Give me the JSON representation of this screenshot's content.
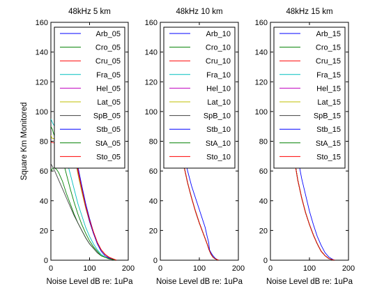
{
  "chart_data": [
    {
      "type": "line",
      "title": "48kHz 5 km",
      "xlabel": "Noise Level dB re: 1uPa",
      "ylabel": "Square Km Monitored",
      "xlim": [
        0,
        200
      ],
      "ylim": [
        0,
        160
      ],
      "xticks": [
        "0",
        "100",
        "200"
      ],
      "yticks": [
        "0",
        "20",
        "40",
        "60",
        "80",
        "100",
        "120",
        "140",
        "160"
      ],
      "grid": false,
      "legend_position": "top-right",
      "series": [
        {
          "name": "Arb_05",
          "color": "#0000ff",
          "x": [
            60,
            70,
            80,
            90,
            100,
            110,
            120,
            130,
            140,
            150,
            160,
            170
          ],
          "y": [
            78,
            63,
            50,
            38,
            28,
            19,
            12,
            7,
            4,
            2,
            1,
            0
          ]
        },
        {
          "name": "Cro_05",
          "color": "#008000",
          "x": [
            0,
            5,
            10,
            15,
            20,
            30,
            40,
            50,
            60,
            70,
            80,
            90,
            100,
            110,
            120,
            130,
            140,
            150,
            160,
            170
          ],
          "y": [
            60,
            62,
            62,
            61,
            59,
            53,
            45,
            38,
            31,
            25,
            20,
            15,
            11,
            8,
            5,
            3,
            2,
            1,
            0.5,
            0
          ]
        },
        {
          "name": "Cru_05",
          "color": "#ff0000",
          "x": [
            60,
            70,
            80,
            90,
            100,
            110,
            120,
            130,
            140,
            150,
            160,
            170
          ],
          "y": [
            75,
            61,
            48,
            36,
            27,
            19,
            12,
            7,
            4,
            2,
            1,
            0
          ]
        },
        {
          "name": "Fra_05",
          "color": "#00bfbf",
          "x": [
            0,
            5,
            10,
            20,
            30,
            40,
            50,
            60,
            70,
            80,
            90,
            100,
            110,
            120,
            130,
            140,
            150,
            160,
            170
          ],
          "y": [
            95,
            92,
            90,
            84,
            76,
            68,
            58,
            48,
            38,
            30,
            22,
            16,
            11,
            7,
            4,
            2,
            1,
            0.5,
            0
          ]
        },
        {
          "name": "Hel_05",
          "color": "#bf00bf",
          "x": [
            55,
            60,
            70,
            80,
            90,
            100,
            110,
            120,
            130,
            140,
            150,
            160,
            170
          ],
          "y": [
            80,
            72,
            58,
            46,
            35,
            26,
            18,
            12,
            7,
            4,
            2,
            1,
            0
          ]
        },
        {
          "name": "Lat_05",
          "color": "#bfbf00",
          "x": [
            0,
            3,
            55,
            60,
            70,
            80,
            90,
            100,
            110,
            120,
            130,
            140,
            150,
            160,
            170
          ],
          "y": [
            84,
            82,
            80,
            72,
            58,
            46,
            35,
            26,
            18,
            12,
            7,
            4,
            2,
            1,
            0
          ]
        },
        {
          "name": "SpB_05",
          "color": "#404040",
          "x": [
            0,
            4,
            10,
            20,
            30,
            40,
            50,
            60,
            70,
            80,
            90,
            100,
            110,
            120,
            130,
            140,
            150,
            160,
            170
          ],
          "y": [
            65,
            63,
            60,
            54,
            48,
            42,
            36,
            30,
            25,
            20,
            15,
            11,
            8,
            5,
            3,
            2,
            1,
            0.5,
            0
          ]
        },
        {
          "name": "Stb_05",
          "color": "#0000ff",
          "x": [
            62,
            70,
            80,
            90,
            100,
            110,
            120,
            130,
            140,
            150,
            160,
            170
          ],
          "y": [
            70,
            60,
            48,
            36,
            26,
            18,
            11,
            6,
            3,
            1.5,
            0.5,
            0
          ]
        },
        {
          "name": "StA_05",
          "color": "#008000",
          "x": [
            0,
            2,
            4,
            6,
            10,
            20,
            30,
            40,
            50,
            60,
            70,
            80,
            90,
            100,
            110,
            120,
            130,
            140,
            150,
            160,
            170
          ],
          "y": [
            90,
            89,
            88,
            86,
            83,
            76,
            68,
            58,
            48,
            39,
            31,
            24,
            18,
            13,
            9,
            6,
            3,
            2,
            1,
            0.5,
            0
          ]
        },
        {
          "name": "Sto_05",
          "color": "#ff0000",
          "x": [
            0,
            3,
            58,
            65,
            70,
            80,
            90,
            100,
            110,
            120,
            130,
            140,
            150,
            160,
            170
          ],
          "y": [
            80,
            79,
            78,
            68,
            60,
            48,
            36,
            27,
            19,
            12,
            7,
            4,
            2,
            1,
            0
          ]
        }
      ]
    },
    {
      "type": "line",
      "title": "48kHz 10 km",
      "xlabel": "Noise Level dB re: 1uPa",
      "xlim": [
        0,
        200
      ],
      "ylim": [
        0,
        160
      ],
      "xticks": [
        "0",
        "100",
        "200"
      ],
      "yticks": [
        "0",
        "20",
        "40",
        "60",
        "80",
        "100",
        "120",
        "140",
        "160"
      ],
      "grid": false,
      "legend_position": "top-right",
      "series": [
        {
          "name": "Arb_10",
          "color": "#0000ff",
          "x": [
            55,
            60,
            70,
            80,
            90,
            100,
            110,
            120,
            125,
            130,
            135,
            140,
            145,
            150
          ],
          "y": [
            72,
            64,
            52,
            42,
            33,
            25,
            18,
            11,
            7,
            4,
            2,
            1,
            0.5,
            0
          ]
        },
        {
          "name": "Cro_10",
          "color": "#008000",
          "x": [
            55,
            60,
            70,
            80,
            90,
            100,
            110,
            120,
            125,
            130,
            135,
            140,
            145,
            150
          ],
          "y": [
            72,
            64,
            52,
            42,
            33,
            25,
            18,
            11,
            7,
            4,
            2,
            1,
            0.5,
            0
          ]
        },
        {
          "name": "Cru_10",
          "color": "#ff0000",
          "x": [
            55,
            60,
            70,
            80,
            90,
            100,
            110,
            120,
            125,
            130,
            135,
            140,
            145,
            150
          ],
          "y": [
            72,
            64,
            52,
            42,
            33,
            25,
            18,
            11,
            7,
            4,
            2,
            1,
            0.5,
            0
          ]
        },
        {
          "name": "Fra_10",
          "color": "#00bfbf",
          "x": [
            55,
            60,
            70,
            80,
            90,
            100,
            110,
            120,
            125,
            130,
            135,
            140,
            145,
            150
          ],
          "y": [
            72,
            64,
            52,
            42,
            33,
            25,
            18,
            11,
            7,
            4,
            2,
            1,
            0.5,
            0
          ]
        },
        {
          "name": "Hel_10",
          "color": "#bf00bf",
          "x": [
            55,
            60,
            70,
            80,
            90,
            100,
            110,
            120,
            125,
            130,
            135,
            140,
            145,
            150
          ],
          "y": [
            72,
            64,
            52,
            42,
            33,
            25,
            18,
            11,
            7,
            4,
            2,
            1,
            0.5,
            0
          ]
        },
        {
          "name": "Lat_10",
          "color": "#bfbf00",
          "x": [
            55,
            60,
            70,
            80,
            90,
            100,
            110,
            120,
            125,
            130,
            135,
            140,
            145,
            150
          ],
          "y": [
            72,
            64,
            52,
            42,
            33,
            25,
            18,
            11,
            7,
            4,
            2,
            1,
            0.5,
            0
          ]
        },
        {
          "name": "SpB_10",
          "color": "#404040",
          "x": [
            55,
            60,
            70,
            80,
            90,
            100,
            110,
            120,
            125,
            130,
            135,
            140,
            145,
            150
          ],
          "y": [
            72,
            64,
            52,
            42,
            33,
            25,
            18,
            11,
            7,
            4,
            2,
            1,
            0.5,
            0
          ]
        },
        {
          "name": "Stb_10",
          "color": "#0000ff",
          "x": [
            60,
            70,
            80,
            90,
            100,
            110,
            115,
            120,
            124,
            126,
            130,
            135,
            140,
            145,
            150
          ],
          "y": [
            72,
            60,
            50,
            42,
            34,
            26,
            22,
            16,
            12,
            7,
            5,
            3,
            1.5,
            0.5,
            0
          ]
        },
        {
          "name": "StA_10",
          "color": "#008000",
          "x": [
            55,
            60,
            70,
            80,
            90,
            100,
            110,
            120,
            125,
            130,
            135,
            140,
            145,
            150
          ],
          "y": [
            72,
            64,
            52,
            42,
            33,
            25,
            18,
            11,
            7,
            4,
            2,
            1,
            0.5,
            0
          ]
        },
        {
          "name": "Sto_10",
          "color": "#ff0000",
          "x": [
            55,
            60,
            70,
            80,
            90,
            100,
            110,
            120,
            125,
            130,
            135,
            140,
            145,
            150
          ],
          "y": [
            72,
            64,
            52,
            42,
            33,
            25,
            18,
            11,
            7,
            4,
            2,
            1,
            0.5,
            0
          ]
        }
      ]
    },
    {
      "type": "line",
      "title": "48kHz 15 km",
      "xlabel": "Noise Level dB re: 1uPa",
      "xlim": [
        0,
        200
      ],
      "ylim": [
        0,
        160
      ],
      "xticks": [
        "0",
        "100",
        "200"
      ],
      "yticks": [
        "0",
        "20",
        "40",
        "60",
        "80",
        "100",
        "120",
        "140",
        "160"
      ],
      "grid": false,
      "legend_position": "top-right",
      "series": [
        {
          "name": "Arb_15",
          "color": "#0000ff",
          "x": [
            60,
            65,
            70,
            80,
            90,
            100,
            110,
            120,
            130,
            140,
            150,
            160,
            165
          ],
          "y": [
            70,
            62,
            54,
            42,
            32,
            24,
            17,
            11,
            6,
            3,
            1,
            0.3,
            0
          ]
        },
        {
          "name": "Cro_15",
          "color": "#008000",
          "x": [
            60,
            65,
            70,
            80,
            90,
            100,
            110,
            120,
            130,
            140,
            150,
            160,
            165
          ],
          "y": [
            70,
            62,
            54,
            42,
            32,
            24,
            17,
            11,
            6,
            3,
            1,
            0.3,
            0
          ]
        },
        {
          "name": "Cru_15",
          "color": "#ff0000",
          "x": [
            60,
            65,
            70,
            80,
            90,
            100,
            110,
            120,
            130,
            140,
            150,
            160,
            165
          ],
          "y": [
            70,
            62,
            54,
            42,
            32,
            24,
            17,
            11,
            6,
            3,
            1,
            0.3,
            0
          ]
        },
        {
          "name": "Fra_15",
          "color": "#00bfbf",
          "x": [
            60,
            65,
            70,
            80,
            90,
            100,
            110,
            120,
            130,
            140,
            150,
            160,
            165
          ],
          "y": [
            70,
            62,
            54,
            42,
            32,
            24,
            17,
            11,
            6,
            3,
            1,
            0.3,
            0
          ]
        },
        {
          "name": "Hel_15",
          "color": "#bf00bf",
          "x": [
            60,
            65,
            70,
            80,
            90,
            100,
            110,
            120,
            130,
            140,
            150,
            160,
            165
          ],
          "y": [
            70,
            62,
            54,
            42,
            32,
            24,
            17,
            11,
            6,
            3,
            1,
            0.3,
            0
          ]
        },
        {
          "name": "Lat_15",
          "color": "#bfbf00",
          "x": [
            60,
            65,
            70,
            80,
            90,
            100,
            110,
            120,
            130,
            140,
            150,
            160,
            165
          ],
          "y": [
            70,
            62,
            54,
            42,
            32,
            24,
            17,
            11,
            6,
            3,
            1,
            0.3,
            0
          ]
        },
        {
          "name": "SpB_15",
          "color": "#404040",
          "x": [
            60,
            65,
            70,
            80,
            90,
            100,
            110,
            120,
            130,
            140,
            150,
            160,
            165
          ],
          "y": [
            70,
            62,
            54,
            42,
            32,
            24,
            17,
            11,
            6,
            3,
            1,
            0.3,
            0
          ]
        },
        {
          "name": "Stb_15",
          "color": "#0000ff",
          "x": [
            70,
            75,
            80,
            90,
            100,
            110,
            120,
            130,
            140,
            150,
            160,
            165
          ],
          "y": [
            70,
            62,
            55,
            44,
            33,
            24,
            16,
            10,
            5,
            2,
            0.5,
            0
          ]
        },
        {
          "name": "StA_15",
          "color": "#008000",
          "x": [
            60,
            65,
            70,
            80,
            90,
            100,
            110,
            120,
            130,
            140,
            150,
            160,
            165
          ],
          "y": [
            70,
            62,
            54,
            42,
            32,
            24,
            17,
            11,
            6,
            3,
            1,
            0.3,
            0
          ]
        },
        {
          "name": "Sto_15",
          "color": "#ff0000",
          "x": [
            60,
            65,
            70,
            80,
            90,
            100,
            110,
            120,
            130,
            140,
            150,
            160,
            165
          ],
          "y": [
            70,
            62,
            54,
            42,
            32,
            24,
            17,
            11,
            6,
            3,
            1,
            0.3,
            0
          ]
        }
      ]
    }
  ]
}
